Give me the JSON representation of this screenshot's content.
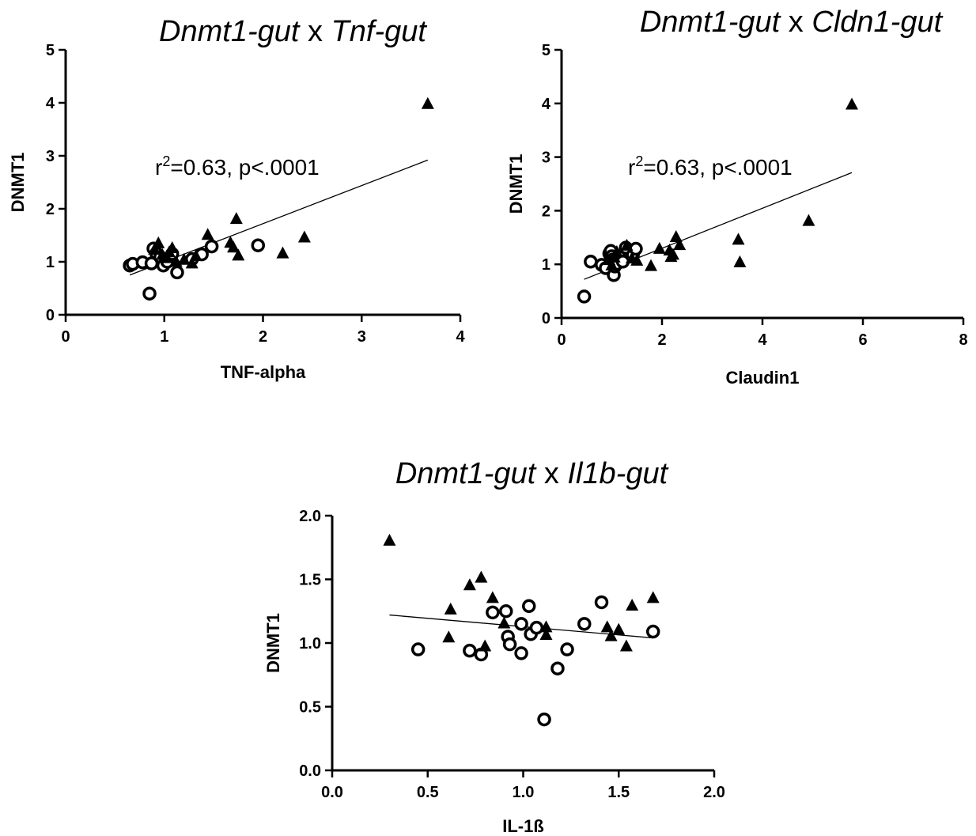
{
  "chart_data": [
    {
      "type": "scatter",
      "title_parts": [
        {
          "text": "Dnmt1-gut",
          "italic": true
        },
        {
          "text": " x ",
          "italic": false
        },
        {
          "text": "Tnf-gut",
          "italic": true
        }
      ],
      "xlabel": "TNF-alpha",
      "ylabel": "DNMT1",
      "xlim": [
        0,
        4
      ],
      "ylim": [
        0,
        5
      ],
      "xticks": [
        0,
        1,
        2,
        3,
        4
      ],
      "yticks": [
        0,
        1,
        2,
        3,
        4,
        5
      ],
      "xtick_labels": [
        "0",
        "1",
        "2",
        "3",
        "4"
      ],
      "ytick_labels": [
        "0",
        "1",
        "2",
        "3",
        "4",
        "5"
      ],
      "annotation": {
        "prefix": "r",
        "sup": "2",
        "suffix": "=0.63, p<.0001",
        "x": 0.9,
        "y": 2.75
      },
      "regression_line": {
        "x": [
          0.65,
          3.67
        ],
        "y": [
          0.75,
          2.92
        ]
      },
      "series": [
        {
          "marker": "open-circle",
          "points": [
            [
              0.65,
              0.93
            ],
            [
              0.68,
              0.96
            ],
            [
              0.78,
              0.99
            ],
            [
              0.85,
              0.4
            ],
            [
              0.87,
              0.97
            ],
            [
              0.89,
              1.25
            ],
            [
              0.92,
              1.16
            ],
            [
              0.96,
              1.09
            ],
            [
              0.99,
              0.93
            ],
            [
              1.03,
              1.0
            ],
            [
              1.08,
              1.15
            ],
            [
              1.13,
              0.8
            ],
            [
              1.28,
              1.05
            ],
            [
              1.38,
              1.14
            ],
            [
              1.48,
              1.29
            ],
            [
              1.95,
              1.31
            ]
          ]
        },
        {
          "marker": "filled-triangle",
          "points": [
            [
              0.9,
              1.22
            ],
            [
              0.94,
              1.34
            ],
            [
              0.98,
              1.12
            ],
            [
              1.02,
              1.06
            ],
            [
              1.05,
              1.17
            ],
            [
              1.08,
              1.25
            ],
            [
              1.12,
              0.99
            ],
            [
              1.2,
              1.03
            ],
            [
              1.28,
              0.96
            ],
            [
              1.32,
              1.1
            ],
            [
              1.44,
              1.5
            ],
            [
              1.67,
              1.35
            ],
            [
              1.7,
              1.26
            ],
            [
              1.73,
              1.8
            ],
            [
              1.75,
              1.11
            ],
            [
              2.2,
              1.15
            ],
            [
              2.42,
              1.45
            ],
            [
              3.67,
              3.97
            ]
          ]
        }
      ]
    },
    {
      "type": "scatter",
      "title_parts": [
        {
          "text": "Dnmt1-gut",
          "italic": true
        },
        {
          "text": " x ",
          "italic": false
        },
        {
          "text": "Cldn1-gut",
          "italic": true
        }
      ],
      "xlabel": "Claudin1",
      "ylabel": "DNMT1",
      "xlim": [
        0,
        8
      ],
      "ylim": [
        0,
        5
      ],
      "xticks": [
        0,
        2,
        4,
        6,
        8
      ],
      "yticks": [
        0,
        1,
        2,
        3,
        4,
        5
      ],
      "xtick_labels": [
        "0",
        "2",
        "4",
        "6",
        "8"
      ],
      "ytick_labels": [
        "0",
        "1",
        "2",
        "3",
        "4",
        "5"
      ],
      "annotation": {
        "prefix": "r",
        "sup": "2",
        "suffix": "=0.63, p<.0001",
        "x": 1.3,
        "y": 2.75
      },
      "regression_line": {
        "x": [
          0.45,
          5.78
        ],
        "y": [
          0.72,
          2.71
        ]
      },
      "series": [
        {
          "marker": "open-circle",
          "points": [
            [
              0.45,
              0.4
            ],
            [
              0.58,
              1.05
            ],
            [
              0.8,
              0.99
            ],
            [
              0.88,
              0.93
            ],
            [
              0.95,
              1.2
            ],
            [
              0.98,
              1.25
            ],
            [
              1.0,
              1.15
            ],
            [
              1.02,
              1.09
            ],
            [
              1.04,
              0.8
            ],
            [
              1.06,
              0.96
            ],
            [
              1.1,
              1.01
            ],
            [
              1.15,
              1.14
            ],
            [
              1.22,
              1.05
            ],
            [
              1.28,
              1.31
            ],
            [
              1.42,
              1.17
            ],
            [
              1.48,
              1.29
            ]
          ]
        },
        {
          "marker": "filled-triangle",
          "points": [
            [
              0.95,
              1.07
            ],
            [
              1.0,
              0.97
            ],
            [
              1.05,
              1.12
            ],
            [
              1.1,
              1.22
            ],
            [
              1.3,
              1.34
            ],
            [
              1.4,
              1.1
            ],
            [
              1.5,
              1.06
            ],
            [
              1.78,
              0.96
            ],
            [
              1.95,
              1.28
            ],
            [
              2.15,
              1.25
            ],
            [
              2.18,
              1.13
            ],
            [
              2.22,
              1.17
            ],
            [
              2.28,
              1.5
            ],
            [
              2.35,
              1.35
            ],
            [
              3.52,
              1.45
            ],
            [
              3.55,
              1.03
            ],
            [
              4.92,
              1.8
            ],
            [
              5.78,
              3.97
            ]
          ]
        }
      ]
    },
    {
      "type": "scatter",
      "title_parts": [
        {
          "text": "Dnmt1-gut",
          "italic": true
        },
        {
          "text": " x ",
          "italic": false
        },
        {
          "text": "Il1b-gut",
          "italic": true
        }
      ],
      "xlabel": "IL-1ß",
      "ylabel": "DNMT1",
      "xlim": [
        0,
        2
      ],
      "ylim": [
        0,
        2
      ],
      "xticks": [
        0,
        0.5,
        1,
        1.5,
        2
      ],
      "yticks": [
        0,
        0.5,
        1,
        1.5,
        2
      ],
      "xtick_labels": [
        "0.0",
        "0.5",
        "1.0",
        "1.5",
        "2.0"
      ],
      "ytick_labels": [
        "0.0",
        "0.5",
        "1.0",
        "1.5",
        "2.0"
      ],
      "annotation": null,
      "regression_line": {
        "x": [
          0.3,
          1.68
        ],
        "y": [
          1.22,
          1.04
        ]
      },
      "series": [
        {
          "marker": "open-circle",
          "points": [
            [
              0.45,
              0.95
            ],
            [
              0.72,
              0.94
            ],
            [
              0.78,
              0.91
            ],
            [
              0.84,
              1.24
            ],
            [
              0.91,
              1.25
            ],
            [
              0.92,
              1.05
            ],
            [
              0.93,
              0.99
            ],
            [
              0.99,
              1.15
            ],
            [
              0.99,
              0.92
            ],
            [
              1.03,
              1.29
            ],
            [
              1.04,
              1.07
            ],
            [
              1.07,
              1.12
            ],
            [
              1.11,
              0.4
            ],
            [
              1.18,
              0.8
            ],
            [
              1.23,
              0.95
            ],
            [
              1.32,
              1.15
            ],
            [
              1.41,
              1.32
            ],
            [
              1.68,
              1.09
            ]
          ]
        },
        {
          "marker": "filled-triangle",
          "points": [
            [
              0.3,
              1.8
            ],
            [
              0.61,
              1.04
            ],
            [
              0.62,
              1.26
            ],
            [
              0.72,
              1.45
            ],
            [
              0.78,
              1.51
            ],
            [
              0.8,
              0.97
            ],
            [
              0.84,
              1.35
            ],
            [
              0.9,
              1.15
            ],
            [
              1.12,
              1.12
            ],
            [
              1.12,
              1.06
            ],
            [
              1.44,
              1.12
            ],
            [
              1.46,
              1.05
            ],
            [
              1.5,
              1.1
            ],
            [
              1.54,
              0.97
            ],
            [
              1.57,
              1.29
            ],
            [
              1.68,
              1.35
            ]
          ]
        }
      ]
    }
  ]
}
